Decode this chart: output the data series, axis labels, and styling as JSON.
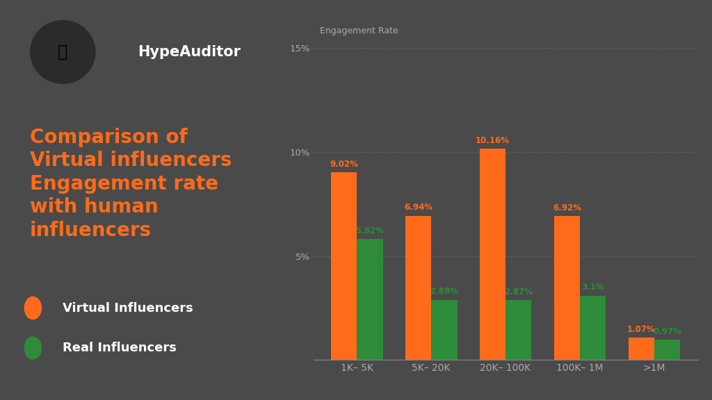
{
  "background_color": "#4a4a4a",
  "categories": [
    "1K– 5K",
    "5K– 20K",
    "20K– 100K",
    "100K– 1M",
    ">1M"
  ],
  "virtual": [
    9.02,
    6.94,
    10.16,
    6.92,
    1.07
  ],
  "real": [
    5.82,
    2.89,
    2.87,
    3.1,
    0.97
  ],
  "virtual_color": "#FF6B1A",
  "real_color": "#2E8B3A",
  "virtual_labels": [
    "9.02%",
    "6.94%",
    "10.16%",
    "6.92%",
    "1.07%"
  ],
  "real_labels": [
    "5.82%",
    "2.89%",
    "2.87%",
    "3.1%",
    "0.97%"
  ],
  "ylim": [
    0,
    15
  ],
  "yticks": [
    5,
    10,
    15
  ],
  "ytick_labels": [
    "5%",
    "10%",
    "15%"
  ],
  "engagement_rate_label": "Engagement Rate",
  "title_line1": "Comparison of",
  "title_line2": "Virtual influencers",
  "title_line3": "Engagement rate",
  "title_line4": "with human",
  "title_line5": "influencers",
  "title_color": "#FF6B1A",
  "brand_name": "HypeAuditor",
  "brand_color": "#FFFFFF",
  "legend_virtual": "Virtual Influencers",
  "legend_real": "Real Influencers",
  "legend_color": "#FFFFFF",
  "logo_bg": "#2b2b2b",
  "tick_color": "#aaaaaa",
  "grid_color": "#6a6a6a"
}
